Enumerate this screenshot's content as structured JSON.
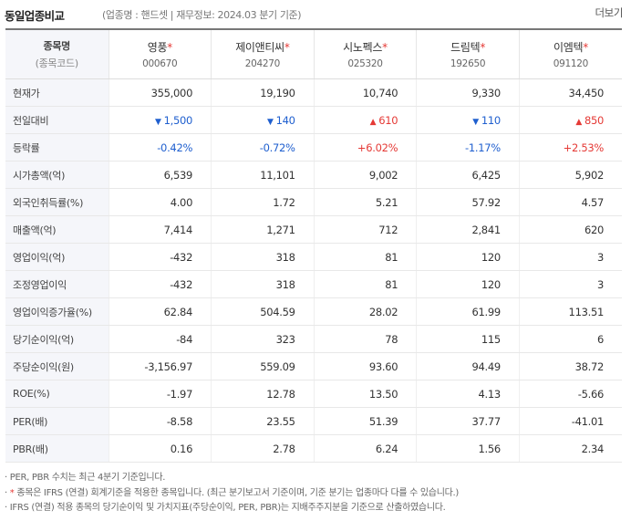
{
  "header": {
    "title": "동일업종비교",
    "info": "(업종명 : 핸드셋 | 재무정보: 2024.03 분기 기준)",
    "more": "더보기"
  },
  "table": {
    "head_label1": "종목명",
    "head_label2": "(종목코드)",
    "companies": [
      {
        "name": "영풍",
        "star": "*",
        "code": "000670"
      },
      {
        "name": "제이앤티씨",
        "star": "*",
        "code": "204270"
      },
      {
        "name": "시노펙스",
        "star": "*",
        "code": "025320"
      },
      {
        "name": "드림텍",
        "star": "*",
        "code": "192650"
      },
      {
        "name": "이엠텍",
        "star": "*",
        "code": "091120"
      }
    ],
    "rows": [
      {
        "label": "현재가",
        "values": [
          "355,000",
          "19,190",
          "10,740",
          "9,330",
          "34,450"
        ]
      },
      {
        "label": "전일대비",
        "values": [
          "1,500",
          "140",
          "610",
          "110",
          "850"
        ],
        "dirs": [
          "down",
          "down",
          "up",
          "down",
          "up"
        ],
        "arrows": [
          "▼",
          "▼",
          "▲",
          "▼",
          "▲"
        ]
      },
      {
        "label": "등락률",
        "values": [
          "-0.42%",
          "-0.72%",
          "+6.02%",
          "-1.17%",
          "+2.53%"
        ],
        "dirs": [
          "down",
          "down",
          "up",
          "down",
          "up"
        ]
      },
      {
        "label": "시가총액(억)",
        "values": [
          "6,539",
          "11,101",
          "9,002",
          "6,425",
          "5,902"
        ]
      },
      {
        "label": "외국인취득률(%)",
        "values": [
          "4.00",
          "1.72",
          "5.21",
          "57.92",
          "4.57"
        ]
      },
      {
        "label": "매출액(억)",
        "values": [
          "7,414",
          "1,271",
          "712",
          "2,841",
          "620"
        ]
      },
      {
        "label": "영업이익(억)",
        "values": [
          "-432",
          "318",
          "81",
          "120",
          "3"
        ]
      },
      {
        "label": "조정영업이익",
        "values": [
          "-432",
          "318",
          "81",
          "120",
          "3"
        ]
      },
      {
        "label": "영업이익증가율(%)",
        "values": [
          "62.84",
          "504.59",
          "28.02",
          "61.99",
          "113.51"
        ]
      },
      {
        "label": "당기순이익(억)",
        "values": [
          "-84",
          "323",
          "78",
          "115",
          "6"
        ]
      },
      {
        "label": "주당순이익(원)",
        "values": [
          "-3,156.97",
          "559.09",
          "93.60",
          "94.49",
          "38.72"
        ]
      },
      {
        "label": "ROE(%)",
        "values": [
          "-1.97",
          "12.78",
          "13.50",
          "4.13",
          "-5.66"
        ]
      },
      {
        "label": "PER(배)",
        "values": [
          "-8.58",
          "23.55",
          "51.39",
          "37.77",
          "-41.01"
        ]
      },
      {
        "label": "PBR(배)",
        "values": [
          "0.16",
          "2.78",
          "6.24",
          "1.56",
          "2.34"
        ]
      }
    ]
  },
  "notes": {
    "n1": "· PER, PBR 수치는 최근 4분기 기준입니다.",
    "n2_star": "*",
    "n2": " 종목은 IFRS (연결) 회계기준을 적용한 종목입니다. (최근 분기보고서 기준이며, 기준 분기는 업종마다 다를 수 있습니다.)",
    "n3": "· IFRS (연결) 적용 종목의 당기순이익 및 가치지표(주당순이익, PER, PBR)는 지배주주지분을 기준으로 산출하였습니다."
  },
  "colors": {
    "up": "#e53935",
    "down": "#1f5fcf",
    "header_bg": "#f5f6fa"
  }
}
